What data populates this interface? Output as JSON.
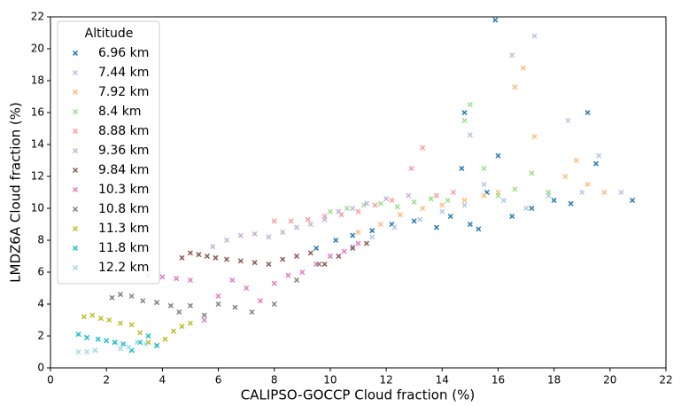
{
  "chart_data": {
    "type": "scatter",
    "xlabel": "CALIPSO-GOCCP Cloud fraction (%)",
    "ylabel": "LMDZ6A Cloud fraction (%)",
    "legend_title": "Altitude",
    "legend_loc": "upper left",
    "xlim": [
      0,
      22
    ],
    "ylim": [
      0,
      22
    ],
    "xticks": [
      0,
      2,
      4,
      6,
      8,
      10,
      12,
      14,
      16,
      18,
      20,
      22
    ],
    "yticks": [
      0,
      2,
      4,
      6,
      8,
      10,
      12,
      14,
      16,
      18,
      20,
      22
    ],
    "series": [
      {
        "name": "6.96 km",
        "color": "#1f77b4",
        "x": [
          9.5,
          10.2,
          10.8,
          11.5,
          12.2,
          13.0,
          13.8,
          14.3,
          14.7,
          14.8,
          15.0,
          15.3,
          15.6,
          15.9,
          16.0,
          16.5,
          17.2,
          18.0,
          18.6,
          19.2,
          19.5,
          20.8
        ],
        "values": [
          7.5,
          8.0,
          8.3,
          8.6,
          9.0,
          9.2,
          8.8,
          9.5,
          12.5,
          16.0,
          9.0,
          8.7,
          11.0,
          21.8,
          13.3,
          9.5,
          10.0,
          10.5,
          10.3,
          16.0,
          12.8,
          10.5
        ]
      },
      {
        "name": "7.44 km",
        "color": "#aec7e8",
        "x": [
          10.0,
          10.8,
          11.5,
          12.3,
          13.2,
          14.0,
          14.8,
          15.0,
          15.5,
          16.2,
          16.5,
          17.0,
          17.3,
          17.8,
          18.5,
          19.0,
          19.6,
          20.4
        ],
        "values": [
          7.0,
          7.6,
          8.2,
          8.8,
          9.3,
          9.8,
          10.2,
          14.6,
          11.5,
          10.5,
          19.6,
          10.0,
          20.8,
          10.8,
          15.5,
          11.0,
          13.3,
          11.0
        ]
      },
      {
        "name": "7.92 km",
        "color": "#ffbb78",
        "x": [
          11.0,
          11.8,
          12.5,
          13.3,
          14.0,
          14.8,
          15.5,
          16.0,
          16.6,
          16.9,
          17.3,
          17.8,
          18.4,
          18.8,
          19.2,
          19.8
        ],
        "values": [
          8.5,
          9.0,
          9.6,
          10.0,
          10.2,
          10.5,
          10.8,
          11.0,
          17.6,
          18.8,
          14.5,
          11.0,
          12.0,
          13.0,
          11.5,
          11.0
        ]
      },
      {
        "name": "8.4 km",
        "color": "#98df8a",
        "x": [
          10.0,
          10.6,
          11.2,
          11.8,
          12.4,
          13.0,
          13.6,
          14.2,
          14.8,
          15.0,
          15.5,
          16.0,
          16.6,
          17.2,
          17.8
        ],
        "values": [
          9.8,
          10.0,
          10.2,
          10.3,
          10.1,
          10.4,
          10.6,
          10.5,
          15.5,
          16.5,
          12.5,
          10.8,
          11.2,
          12.2,
          11.0
        ]
      },
      {
        "name": "8.88 km",
        "color": "#ff9896",
        "x": [
          8.0,
          8.6,
          9.2,
          9.8,
          10.4,
          11.0,
          11.6,
          12.2,
          12.9,
          13.3,
          13.8,
          14.4
        ],
        "values": [
          9.2,
          9.2,
          9.3,
          9.5,
          9.6,
          9.8,
          10.2,
          10.5,
          12.5,
          13.8,
          10.8,
          11.0
        ]
      },
      {
        "name": "9.36 km",
        "color": "#c5b0d5",
        "x": [
          5.8,
          6.3,
          6.8,
          7.3,
          7.8,
          8.3,
          8.8,
          9.3,
          9.8,
          10.3,
          10.8,
          11.3,
          12.0,
          12.8
        ],
        "values": [
          7.6,
          8.0,
          8.3,
          8.4,
          8.2,
          8.5,
          8.8,
          9.0,
          9.3,
          9.8,
          10.0,
          10.3,
          10.6,
          10.8
        ]
      },
      {
        "name": "9.84 km",
        "color": "#8c564b",
        "x": [
          4.7,
          5.0,
          5.3,
          5.6,
          5.9,
          6.3,
          6.8,
          7.3,
          7.8,
          8.3,
          8.8,
          9.3,
          9.8,
          10.3,
          10.8,
          11.3
        ],
        "values": [
          6.9,
          7.2,
          7.1,
          7.0,
          6.9,
          6.8,
          6.7,
          6.6,
          6.5,
          6.8,
          7.0,
          7.2,
          6.5,
          7.0,
          7.5,
          7.8
        ]
      },
      {
        "name": "10.3 km",
        "color": "#e377c2",
        "x": [
          3.5,
          4.0,
          4.5,
          5.0,
          5.5,
          6.0,
          6.5,
          7.0,
          7.5,
          8.0,
          8.5,
          9.0,
          9.5,
          10.0,
          10.5,
          11.0
        ],
        "values": [
          5.8,
          5.7,
          5.6,
          5.5,
          3.0,
          4.5,
          5.5,
          5.0,
          4.2,
          5.3,
          5.8,
          6.0,
          6.5,
          7.0,
          7.3,
          7.8
        ]
      },
      {
        "name": "10.8 km",
        "color": "#7f7f7f",
        "x": [
          2.2,
          2.5,
          2.9,
          3.3,
          3.8,
          4.3,
          4.6,
          5.0,
          5.5,
          6.0,
          6.6,
          7.2,
          8.0,
          8.8,
          9.6
        ],
        "values": [
          4.4,
          4.6,
          4.5,
          4.2,
          4.1,
          3.9,
          3.5,
          3.9,
          3.3,
          4.0,
          3.8,
          3.5,
          4.0,
          5.5,
          6.5
        ]
      },
      {
        "name": "11.3 km",
        "color": "#bcbd22",
        "x": [
          1.2,
          1.5,
          1.8,
          2.1,
          2.5,
          2.9,
          3.2,
          3.5,
          3.8,
          4.1,
          4.4,
          4.7,
          5.0
        ],
        "values": [
          3.2,
          3.3,
          3.1,
          3.0,
          2.8,
          2.7,
          2.2,
          1.6,
          1.4,
          1.8,
          2.3,
          2.6,
          2.8
        ]
      },
      {
        "name": "11.8 km",
        "color": "#17becf",
        "x": [
          1.0,
          1.3,
          1.7,
          2.0,
          2.3,
          2.6,
          2.9,
          3.2,
          3.5,
          3.8
        ],
        "values": [
          2.1,
          1.9,
          1.8,
          1.7,
          1.6,
          1.5,
          1.1,
          1.6,
          2.0,
          1.4
        ]
      },
      {
        "name": "12.2 km",
        "color": "#9edae5",
        "x": [
          1.0,
          1.3,
          1.6,
          2.5,
          2.8,
          3.1,
          3.4
        ],
        "values": [
          1.0,
          1.0,
          1.1,
          1.2,
          1.3,
          1.6,
          1.5
        ]
      }
    ]
  }
}
